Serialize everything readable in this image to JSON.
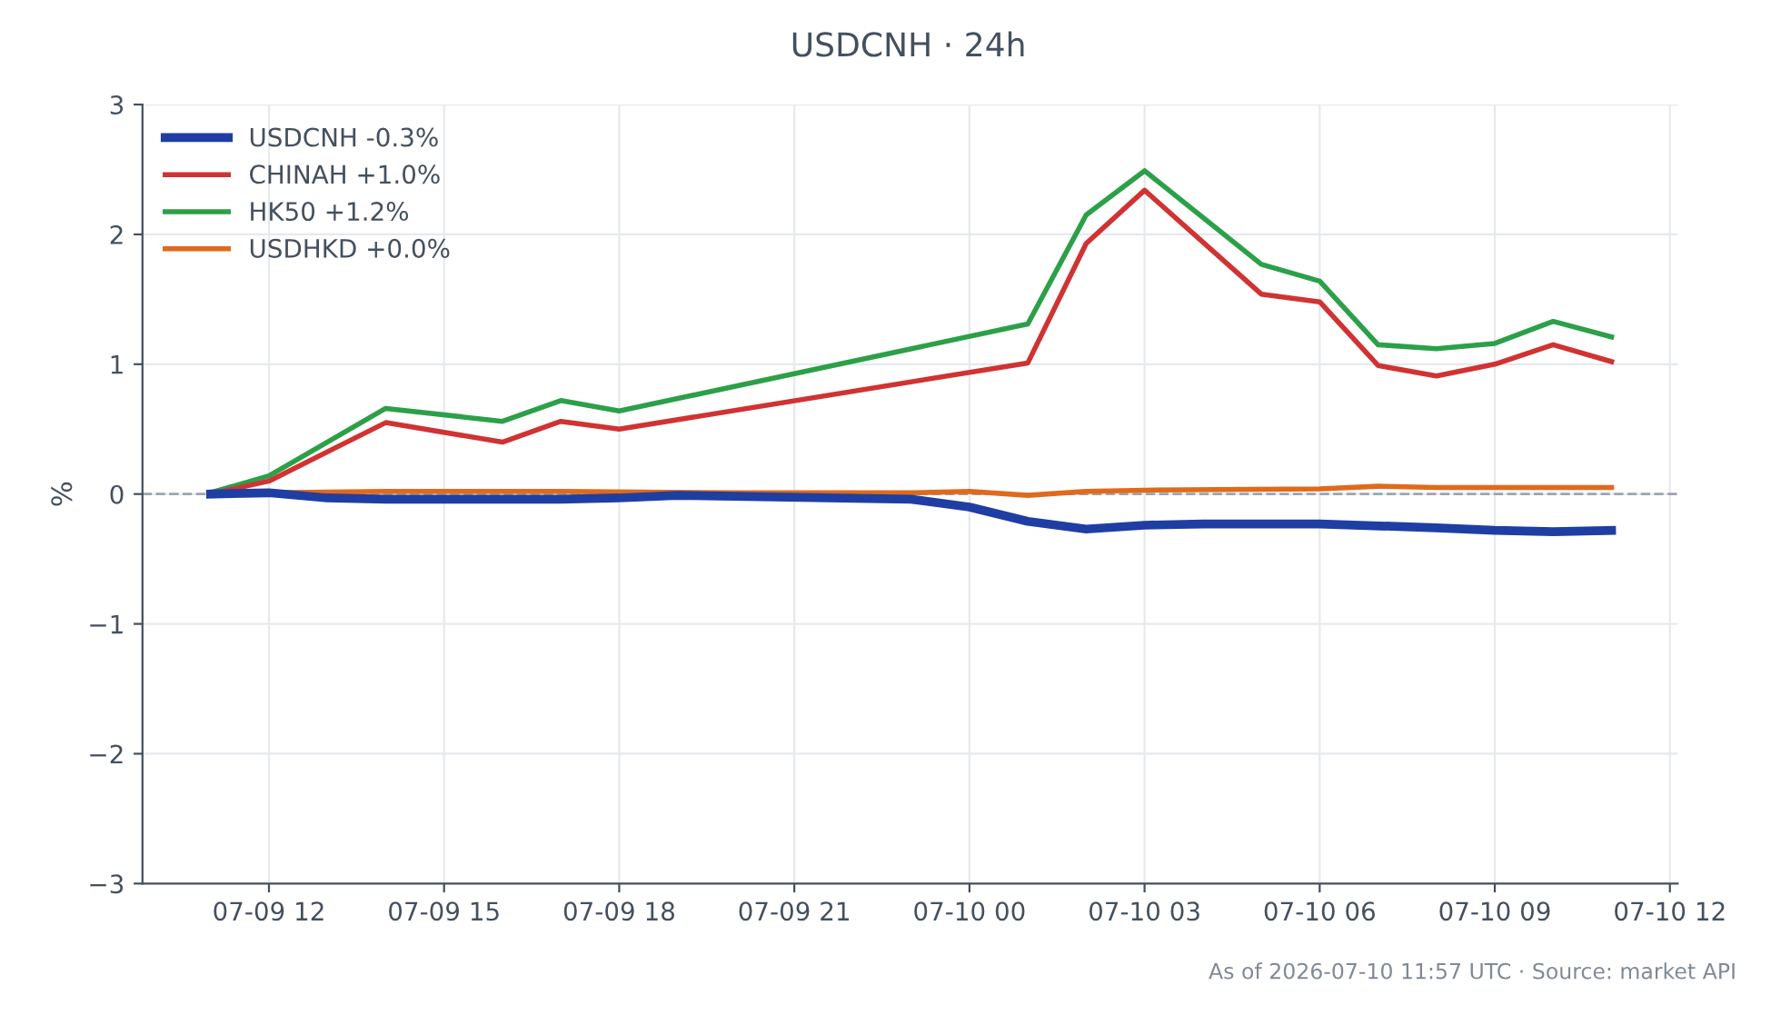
{
  "chart_data": {
    "type": "line",
    "title": "USDCNH · 24h",
    "ylabel": "%",
    "annotations": [
      "As of 2026-07-10 11:57 UTC · Source: market API"
    ],
    "series": [
      {
        "name": "USDCNH -0.3%",
        "color": "#1f3ea3",
        "x": [
          "2026-07-09T11:00",
          "2026-07-09T12:00",
          "2026-07-09T13:00",
          "2026-07-09T14:00",
          "2026-07-09T17:00",
          "2026-07-09T18:00",
          "2026-07-09T19:00",
          "2026-07-09T23:00",
          "2026-07-10T00:00",
          "2026-07-10T01:00",
          "2026-07-10T02:00",
          "2026-07-10T03:00",
          "2026-07-10T04:00",
          "2026-07-10T06:00",
          "2026-07-10T08:00",
          "2026-07-10T09:00",
          "2026-07-10T10:00",
          "2026-07-10T11:00"
        ],
        "values": [
          0.0,
          0.01,
          -0.03,
          -0.04,
          -0.04,
          -0.03,
          -0.01,
          -0.04,
          -0.1,
          -0.21,
          -0.27,
          -0.24,
          -0.23,
          -0.23,
          -0.26,
          -0.28,
          -0.29,
          -0.28
        ]
      },
      {
        "name": "CHINAH +1.0%",
        "color": "#d13232",
        "x": [
          "2026-07-09T11:00",
          "2026-07-09T12:00",
          "2026-07-09T14:00",
          "2026-07-09T16:00",
          "2026-07-09T17:00",
          "2026-07-09T18:00",
          "2026-07-10T01:00",
          "2026-07-10T02:00",
          "2026-07-10T03:00",
          "2026-07-10T05:00",
          "2026-07-10T06:00",
          "2026-07-10T07:00",
          "2026-07-10T08:00",
          "2026-07-10T09:00",
          "2026-07-10T10:00",
          "2026-07-10T11:00"
        ],
        "values": [
          0.0,
          0.1,
          0.55,
          0.4,
          0.56,
          0.5,
          1.01,
          1.93,
          2.34,
          1.54,
          1.48,
          0.99,
          0.91,
          1.0,
          1.15,
          1.02
        ]
      },
      {
        "name": "HK50 +1.2%",
        "color": "#2ca048",
        "x": [
          "2026-07-09T11:00",
          "2026-07-09T12:00",
          "2026-07-09T14:00",
          "2026-07-09T16:00",
          "2026-07-09T17:00",
          "2026-07-09T18:00",
          "2026-07-10T01:00",
          "2026-07-10T02:00",
          "2026-07-10T03:00",
          "2026-07-10T05:00",
          "2026-07-10T06:00",
          "2026-07-10T07:00",
          "2026-07-10T08:00",
          "2026-07-10T09:00",
          "2026-07-10T10:00",
          "2026-07-10T11:00"
        ],
        "values": [
          0.01,
          0.14,
          0.66,
          0.56,
          0.72,
          0.64,
          1.31,
          2.15,
          2.49,
          1.77,
          1.64,
          1.15,
          1.12,
          1.16,
          1.33,
          1.21
        ]
      },
      {
        "name": "USDHKD +0.0%",
        "color": "#e06a1b",
        "x": [
          "2026-07-09T11:00",
          "2026-07-09T12:00",
          "2026-07-09T14:00",
          "2026-07-09T17:00",
          "2026-07-09T20:00",
          "2026-07-09T23:00",
          "2026-07-10T00:00",
          "2026-07-10T01:00",
          "2026-07-10T02:00",
          "2026-07-10T03:00",
          "2026-07-10T06:00",
          "2026-07-10T07:00",
          "2026-07-10T08:00",
          "2026-07-10T11:00"
        ],
        "values": [
          0.0,
          0.01,
          0.02,
          0.02,
          0.01,
          0.01,
          0.02,
          -0.01,
          0.02,
          0.03,
          0.04,
          0.06,
          0.05,
          0.05
        ]
      }
    ],
    "xlim": [
      "2026-07-09T09:50",
      "2026-07-10T12:08"
    ],
    "xticks": [
      {
        "value": "2026-07-09T12:00",
        "label": "07-09 12"
      },
      {
        "value": "2026-07-09T15:00",
        "label": "07-09 15"
      },
      {
        "value": "2026-07-09T18:00",
        "label": "07-09 18"
      },
      {
        "value": "2026-07-09T21:00",
        "label": "07-09 21"
      },
      {
        "value": "2026-07-10T00:00",
        "label": "07-10 00"
      },
      {
        "value": "2026-07-10T03:00",
        "label": "07-10 03"
      },
      {
        "value": "2026-07-10T06:00",
        "label": "07-10 06"
      },
      {
        "value": "2026-07-10T09:00",
        "label": "07-10 09"
      },
      {
        "value": "2026-07-10T12:00",
        "label": "07-10 12"
      }
    ],
    "ylim": [
      -3,
      3
    ],
    "yticks": [
      {
        "value": -3,
        "label": "−3"
      },
      {
        "value": -2,
        "label": "−2"
      },
      {
        "value": -1,
        "label": "−1"
      },
      0,
      1,
      2,
      3
    ],
    "ref_lines": [
      {
        "axis": "y",
        "value": 0,
        "color": "#9aa5b1",
        "line_style": "dashed"
      }
    ],
    "grid": true,
    "legend": "top left",
    "marker": "none",
    "line_style": "solid"
  }
}
